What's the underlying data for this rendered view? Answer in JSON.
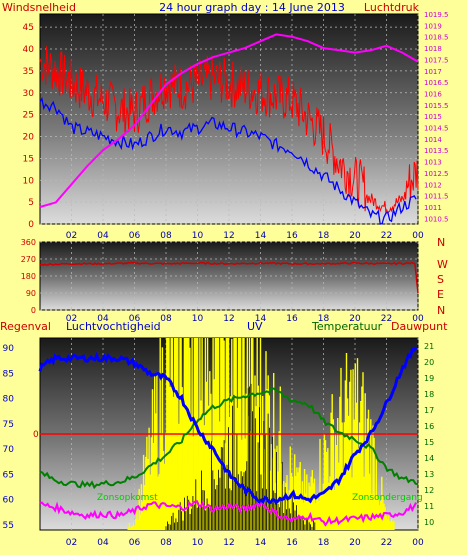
{
  "header": {
    "left_label": "Windsnelheid",
    "title": "24 hour graph day : 14 June 2013",
    "right_label": "Luchtdruk"
  },
  "bottom_labels": {
    "regenval": "Regenval",
    "luchtvochtigheid": "Luchtvochtigheid",
    "uv": "UV",
    "temperatuur": "Temperatuur",
    "dauwpunt": "Dauwpunt",
    "zonsopkomst": "Zonsopkomst",
    "zonsondergang": "Zonsondergang"
  },
  "colors": {
    "background": "#ffff99",
    "wind": "#ff0000",
    "gust": "#0000ff",
    "pressure": "#ff00ff",
    "humidity": "#0000ff",
    "temperature": "#008000",
    "dewpoint": "#ff00ff",
    "uv": "#ffff00",
    "solar": "#000000",
    "direction": "#cc0000",
    "zonsopkomst_text": "#00cc00",
    "regenval_text": "#cc0000",
    "humidity_text": "#0000cc"
  },
  "x_ticks": [
    "02",
    "04",
    "06",
    "08",
    "10",
    "12",
    "14",
    "16",
    "18",
    "20",
    "22",
    "00"
  ],
  "chart_data": [
    {
      "type": "line",
      "title": "24 hour graph day : 14 June 2013",
      "xlabel": "",
      "ylabel": "Windsnelheid",
      "y2label": "Luchtdruk",
      "ylim": [
        0,
        48
      ],
      "y2lim": [
        1010.25,
        1019.5
      ],
      "yticks": [
        0,
        5,
        10,
        15,
        20,
        25,
        30,
        35,
        40,
        45
      ],
      "y2ticks": [
        "1010.5",
        "1011",
        "1011.5",
        "1012",
        "1012.5",
        "1013",
        "1013.5",
        "1014",
        "1014.5",
        "1015",
        "1015.5",
        "1016",
        "1016.5",
        "1017",
        "1017.5",
        "1018",
        "1018.5",
        "1019",
        "1019.5"
      ],
      "x": [
        0,
        1,
        2,
        3,
        4,
        5,
        6,
        7,
        8,
        9,
        10,
        11,
        12,
        13,
        14,
        15,
        16,
        17,
        18,
        19,
        20,
        21,
        22,
        23,
        24
      ],
      "series": [
        {
          "name": "Windsnelheid",
          "axis": "left",
          "values": [
            35,
            33,
            30,
            28,
            26,
            24,
            23,
            27,
            30,
            29,
            30,
            31,
            30,
            29,
            28,
            27,
            26,
            22,
            18,
            12,
            8,
            5,
            3,
            5,
            10
          ]
        },
        {
          "name": "",
          "axis": "left",
          "values": [
            28,
            27,
            22,
            21,
            20,
            19,
            18,
            20,
            22,
            21,
            22,
            23,
            22,
            21,
            20,
            18,
            17,
            14,
            11,
            8,
            5,
            2,
            1,
            4,
            6
          ]
        },
        {
          "name": "Luchtdruk",
          "axis": "right",
          "values": [
            1011.0,
            1011.2,
            1012.0,
            1012.8,
            1013.5,
            1014.0,
            1014.6,
            1015.5,
            1016.4,
            1016.9,
            1017.3,
            1017.6,
            1017.8,
            1018.0,
            1018.3,
            1018.6,
            1018.5,
            1018.3,
            1018.0,
            1017.9,
            1017.8,
            1017.9,
            1018.1,
            1017.8,
            1017.4
          ]
        }
      ]
    },
    {
      "type": "line",
      "title": "",
      "ylabel": "",
      "ylim": [
        0,
        360
      ],
      "yticks": [
        0,
        90,
        180,
        270,
        360
      ],
      "direction_labels": [
        "N",
        "W",
        "S",
        "E",
        "N"
      ],
      "x": [
        0,
        2,
        4,
        6,
        8,
        10,
        12,
        14,
        16,
        18,
        20,
        22,
        23.7,
        24
      ],
      "series": [
        {
          "name": "",
          "values": [
            240,
            245,
            245,
            248,
            245,
            248,
            245,
            248,
            245,
            245,
            248,
            245,
            248,
            90
          ]
        }
      ]
    },
    {
      "type": "line",
      "title": "",
      "ylim_left": [
        54,
        92
      ],
      "ylim_right": [
        9.5,
        21.5
      ],
      "yticks_left": [
        55,
        60,
        65,
        70,
        75,
        80,
        85,
        90
      ],
      "yticks_right": [
        10,
        11,
        12,
        13,
        14,
        15,
        16,
        17,
        18,
        19,
        20,
        21
      ],
      "rain_value": "0",
      "x": [
        0,
        1,
        2,
        3,
        4,
        5,
        6,
        7,
        8,
        9,
        10,
        11,
        12,
        13,
        14,
        15,
        16,
        17,
        18,
        19,
        20,
        21,
        22,
        23,
        24
      ],
      "series": [
        {
          "name": "Luchtvochtigheid",
          "axis": "left",
          "values": [
            86,
            88,
            88,
            88,
            88,
            88,
            87,
            85,
            84,
            80,
            74,
            70,
            65,
            62,
            60,
            60,
            61,
            60,
            61,
            64,
            69,
            73,
            79,
            86,
            91
          ]
        },
        {
          "name": "Temperatuur",
          "axis": "right",
          "values": [
            13.1,
            12.6,
            12.4,
            12.3,
            12.4,
            12.5,
            12.8,
            13.5,
            14.2,
            15.1,
            16.4,
            17.2,
            17.6,
            17.9,
            18.1,
            18.2,
            17.6,
            17.4,
            16.3,
            15.6,
            15.2,
            14.6,
            13.4,
            12.7,
            12.5
          ]
        },
        {
          "name": "Dauwpunt",
          "axis": "right",
          "values": [
            11.1,
            10.9,
            10.6,
            10.4,
            10.5,
            10.4,
            10.7,
            11.1,
            11.0,
            10.9,
            11.2,
            10.8,
            11.0,
            10.8,
            11.2,
            10.5,
            10.1,
            10.4,
            10.0,
            10.1,
            10.2,
            10.3,
            10.4,
            10.6,
            11.1
          ]
        },
        {
          "name": "UV",
          "axis": "uv",
          "values": [
            0,
            0,
            0,
            0,
            0,
            0,
            0.2,
            2.2,
            4.5,
            6.0,
            6.2,
            5.8,
            5.5,
            4.5,
            4.0,
            3.0,
            1.5,
            1.0,
            2.0,
            3.0,
            3.5,
            2.5,
            0.3,
            0,
            0
          ]
        },
        {
          "name": "",
          "axis": "solar",
          "values": [
            0,
            0,
            0,
            0,
            0,
            0,
            0,
            0,
            0.2,
            0.7,
            1.2,
            2.0,
            2.8,
            3.2,
            3.0,
            2.0,
            0.8,
            0.3,
            0.1,
            0,
            0,
            0,
            0,
            0,
            0
          ]
        }
      ]
    }
  ]
}
